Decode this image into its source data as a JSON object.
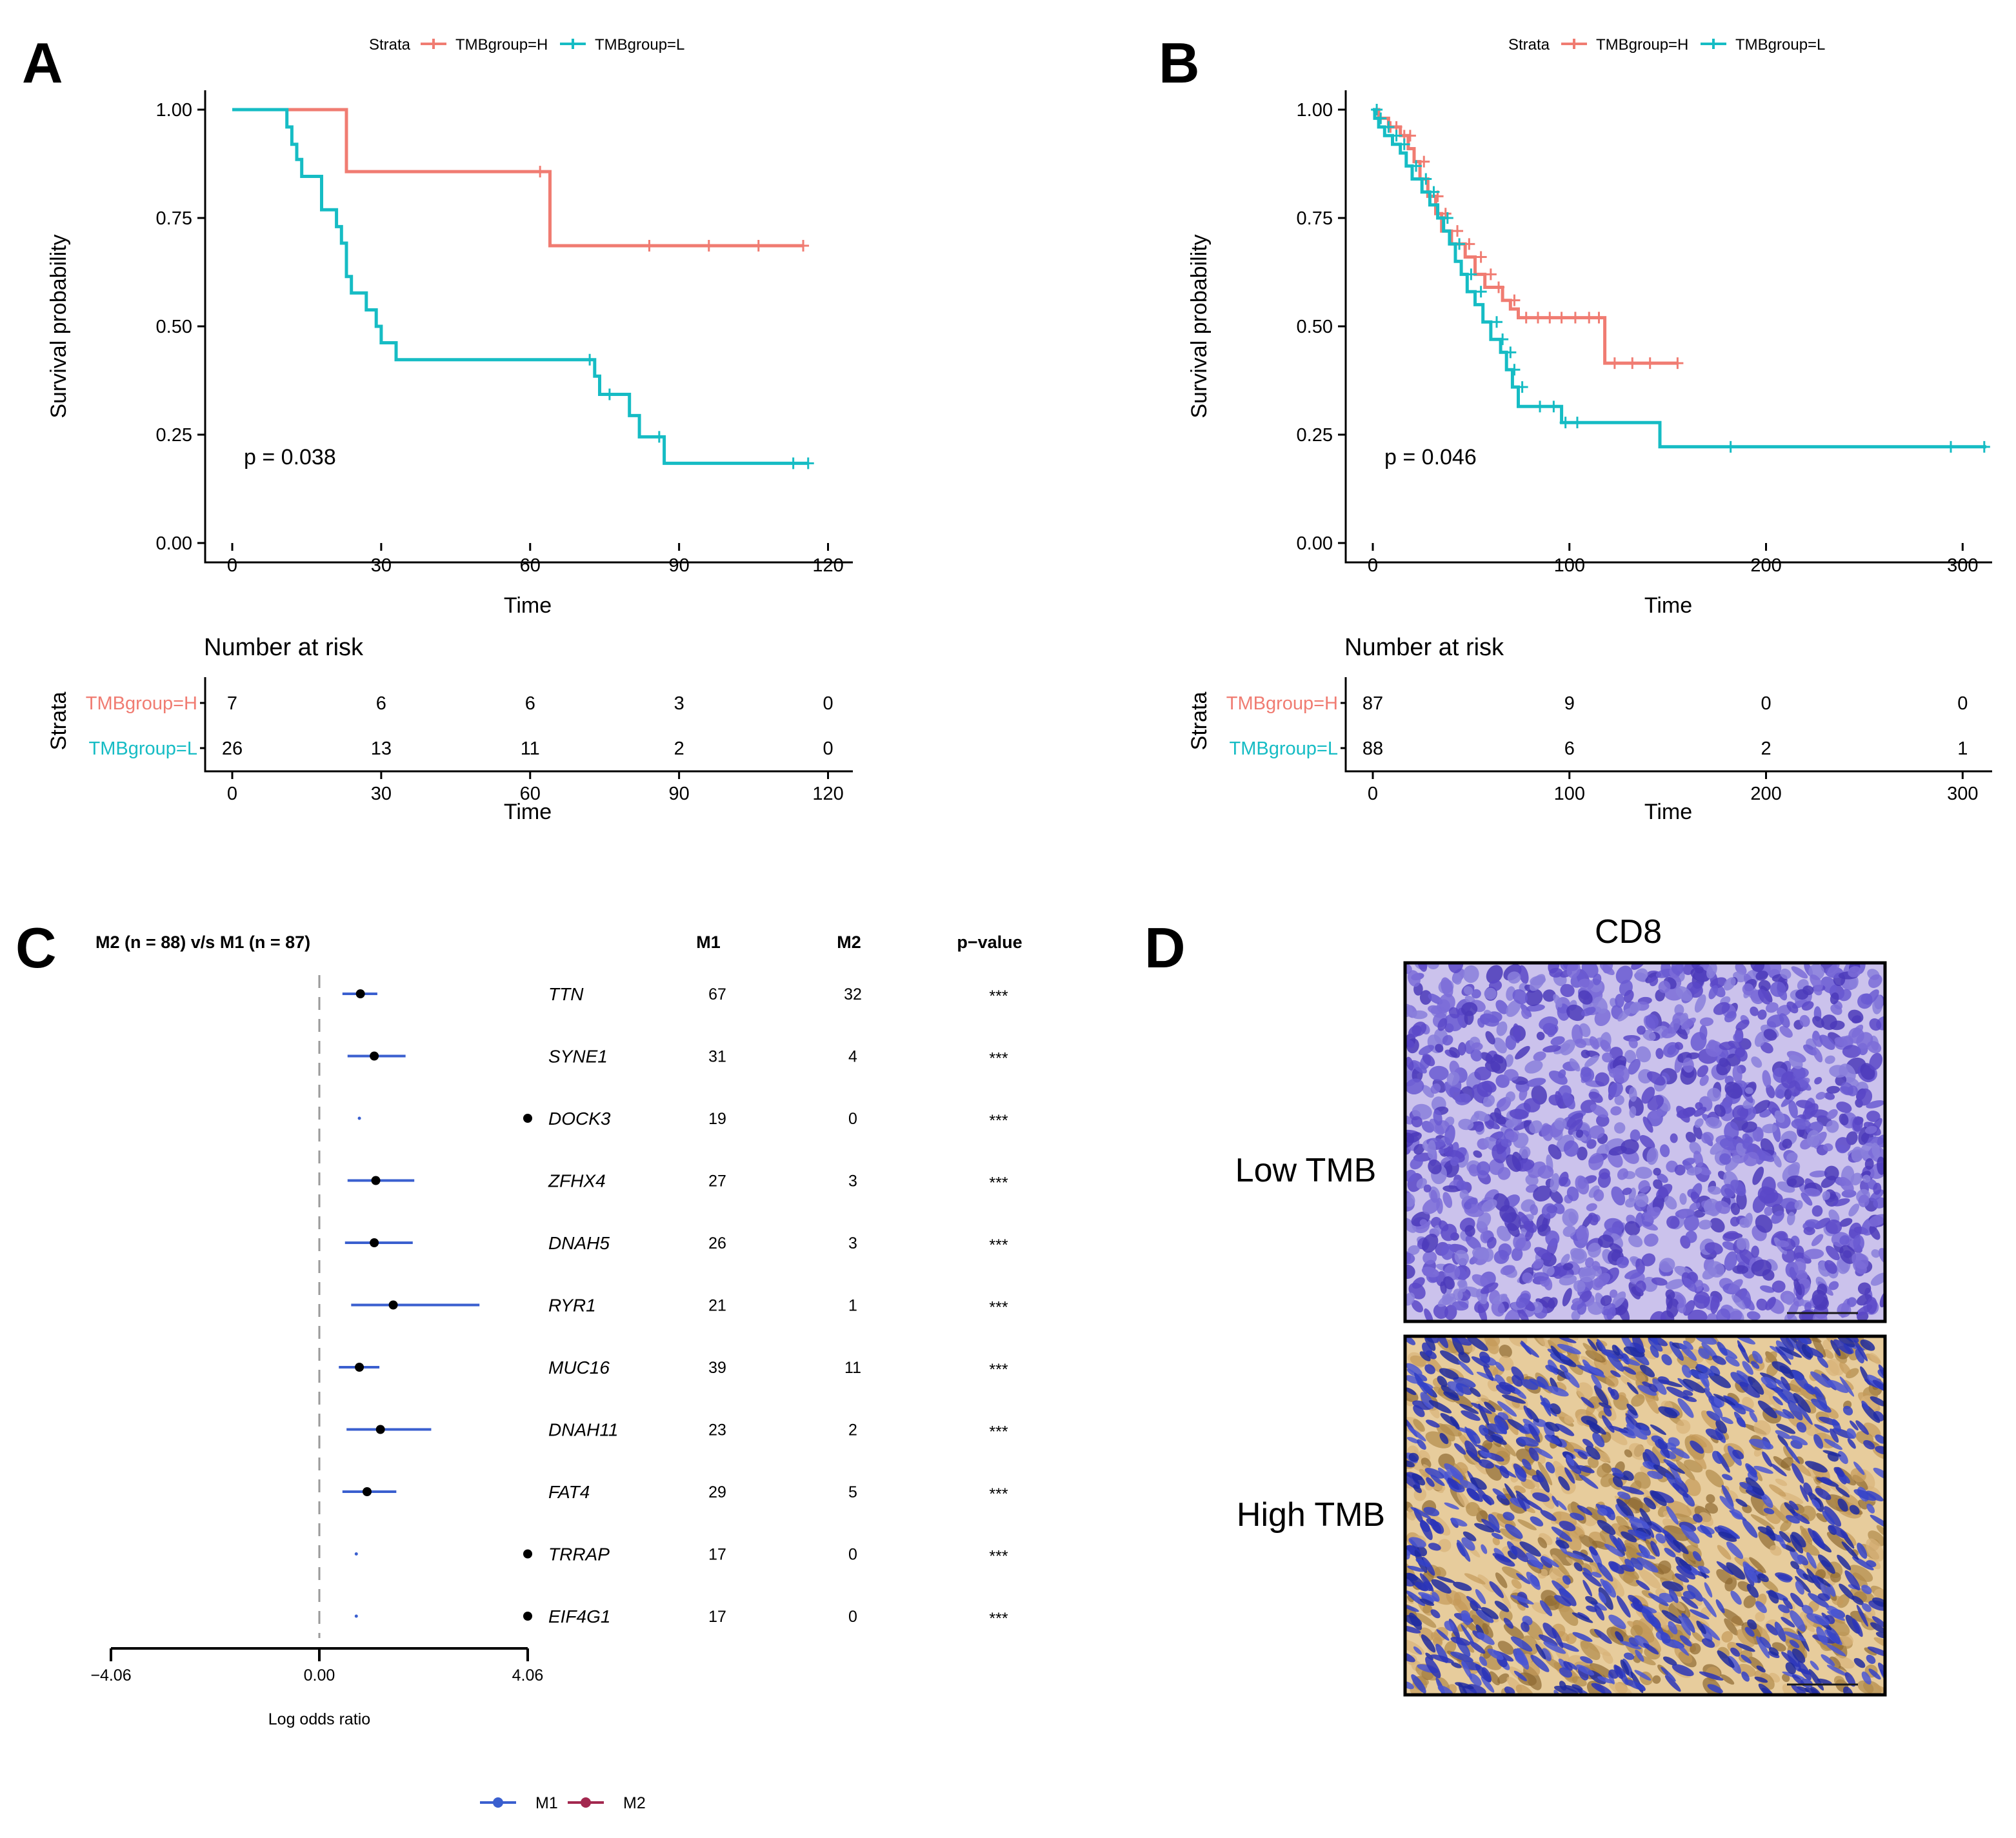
{
  "colors": {
    "H": "#f07c72",
    "L": "#16bcc4",
    "M1": "#3a5fcf",
    "M2": "#a3284f",
    "dash": "#9a9a9a"
  },
  "chart_data": [
    {
      "panel": "A",
      "type": "line",
      "subtype": "kaplan-meier",
      "legend_title": "Strata",
      "xlabel": "Time",
      "ylabel": "Survival probability",
      "xlim": [
        0,
        125
      ],
      "ylim": [
        0,
        1
      ],
      "xticks": [
        0,
        30,
        60,
        90,
        120
      ],
      "yticks": [
        "0.00",
        "0.25",
        "0.50",
        "0.75",
        "1.00"
      ],
      "pvalue": "p = 0.038",
      "series": [
        {
          "name": "TMBgroup=H",
          "color_key": "H",
          "steps": [
            [
              0,
              1.0
            ],
            [
              23,
              1.0
            ],
            [
              23,
              0.857
            ],
            [
              64,
              0.857
            ],
            [
              64,
              0.686
            ],
            [
              115,
              0.686
            ]
          ],
          "censor": [
            [
              62,
              0.857
            ],
            [
              84,
              0.686
            ],
            [
              96,
              0.686
            ],
            [
              106,
              0.686
            ],
            [
              115,
              0.686
            ]
          ]
        },
        {
          "name": "TMBgroup=L",
          "color_key": "L",
          "steps": [
            [
              0,
              1.0
            ],
            [
              11,
              1.0
            ],
            [
              11,
              0.96
            ],
            [
              12,
              0.96
            ],
            [
              12,
              0.92
            ],
            [
              13,
              0.92
            ],
            [
              13,
              0.885
            ],
            [
              14,
              0.885
            ],
            [
              14,
              0.846
            ],
            [
              18,
              0.846
            ],
            [
              18,
              0.769
            ],
            [
              21,
              0.769
            ],
            [
              21,
              0.73
            ],
            [
              22,
              0.73
            ],
            [
              22,
              0.692
            ],
            [
              23,
              0.692
            ],
            [
              23,
              0.615
            ],
            [
              24,
              0.615
            ],
            [
              24,
              0.577
            ],
            [
              27,
              0.577
            ],
            [
              27,
              0.538
            ],
            [
              29,
              0.538
            ],
            [
              29,
              0.5
            ],
            [
              30,
              0.5
            ],
            [
              30,
              0.462
            ],
            [
              33,
              0.462
            ],
            [
              33,
              0.423
            ],
            [
              73,
              0.423
            ],
            [
              73,
              0.385
            ],
            [
              74,
              0.385
            ],
            [
              74,
              0.343
            ],
            [
              80,
              0.343
            ],
            [
              80,
              0.294
            ],
            [
              82,
              0.294
            ],
            [
              82,
              0.245
            ],
            [
              87,
              0.245
            ],
            [
              87,
              0.184
            ],
            [
              116,
              0.184
            ]
          ],
          "censor": [
            [
              72,
              0.423
            ],
            [
              76,
              0.343
            ],
            [
              86,
              0.245
            ],
            [
              113,
              0.184
            ],
            [
              116,
              0.184
            ]
          ]
        }
      ],
      "risk_table": {
        "title": "Number at risk",
        "ylabel": "Strata",
        "xlabel": "Time",
        "rows": [
          {
            "label": "TMBgroup=H",
            "color_key": "H",
            "values": [
              "7",
              "6",
              "6",
              "3",
              "0"
            ]
          },
          {
            "label": "TMBgroup=L",
            "color_key": "L",
            "values": [
              "26",
              "13",
              "11",
              "2",
              "0"
            ]
          }
        ]
      }
    },
    {
      "panel": "B",
      "type": "line",
      "subtype": "kaplan-meier",
      "legend_title": "Strata",
      "xlabel": "Time",
      "ylabel": "Survival probability",
      "xlim": [
        0,
        315
      ],
      "ylim": [
        0,
        1
      ],
      "xticks": [
        0,
        100,
        200,
        300
      ],
      "yticks": [
        "0.00",
        "0.25",
        "0.50",
        "0.75",
        "1.00"
      ],
      "pvalue": "p = 0.046",
      "series": [
        {
          "name": "TMBgroup=H",
          "color_key": "H",
          "steps": [
            [
              0,
              1.0
            ],
            [
              3,
              1.0
            ],
            [
              3,
              0.98
            ],
            [
              8,
              0.98
            ],
            [
              8,
              0.96
            ],
            [
              14,
              0.96
            ],
            [
              14,
              0.94
            ],
            [
              18,
              0.94
            ],
            [
              18,
              0.91
            ],
            [
              21,
              0.91
            ],
            [
              21,
              0.88
            ],
            [
              24,
              0.88
            ],
            [
              24,
              0.84
            ],
            [
              28,
              0.84
            ],
            [
              28,
              0.8
            ],
            [
              32,
              0.8
            ],
            [
              32,
              0.76
            ],
            [
              35,
              0.76
            ],
            [
              35,
              0.72
            ],
            [
              40,
              0.72
            ],
            [
              40,
              0.69
            ],
            [
              47,
              0.69
            ],
            [
              47,
              0.66
            ],
            [
              52,
              0.66
            ],
            [
              52,
              0.62
            ],
            [
              57,
              0.62
            ],
            [
              57,
              0.59
            ],
            [
              66,
              0.59
            ],
            [
              66,
              0.56
            ],
            [
              70,
              0.56
            ],
            [
              70,
              0.54
            ],
            [
              74,
              0.54
            ],
            [
              74,
              0.52
            ],
            [
              118,
              0.52
            ],
            [
              118,
              0.415
            ],
            [
              155,
              0.415
            ]
          ],
          "censor": [
            [
              4,
              0.98
            ],
            [
              9,
              0.96
            ],
            [
              12,
              0.96
            ],
            [
              16,
              0.94
            ],
            [
              19,
              0.94
            ],
            [
              26,
              0.88
            ],
            [
              33,
              0.8
            ],
            [
              37,
              0.76
            ],
            [
              43,
              0.72
            ],
            [
              49,
              0.69
            ],
            [
              55,
              0.66
            ],
            [
              60,
              0.62
            ],
            [
              64,
              0.59
            ],
            [
              72,
              0.56
            ],
            [
              78,
              0.52
            ],
            [
              84,
              0.52
            ],
            [
              90,
              0.52
            ],
            [
              96,
              0.52
            ],
            [
              103,
              0.52
            ],
            [
              110,
              0.52
            ],
            [
              115,
              0.52
            ],
            [
              123,
              0.415
            ],
            [
              132,
              0.415
            ],
            [
              141,
              0.415
            ],
            [
              155,
              0.415
            ]
          ]
        },
        {
          "name": "TMBgroup=L",
          "color_key": "L",
          "steps": [
            [
              0,
              1.0
            ],
            [
              1,
              1.0
            ],
            [
              1,
              0.98
            ],
            [
              3,
              0.98
            ],
            [
              3,
              0.96
            ],
            [
              6,
              0.96
            ],
            [
              6,
              0.94
            ],
            [
              10,
              0.94
            ],
            [
              10,
              0.92
            ],
            [
              14,
              0.92
            ],
            [
              14,
              0.9
            ],
            [
              17,
              0.9
            ],
            [
              17,
              0.87
            ],
            [
              20,
              0.87
            ],
            [
              20,
              0.84
            ],
            [
              25,
              0.84
            ],
            [
              25,
              0.81
            ],
            [
              29,
              0.81
            ],
            [
              29,
              0.78
            ],
            [
              33,
              0.78
            ],
            [
              33,
              0.75
            ],
            [
              36,
              0.75
            ],
            [
              36,
              0.72
            ],
            [
              39,
              0.72
            ],
            [
              39,
              0.69
            ],
            [
              42,
              0.69
            ],
            [
              42,
              0.65
            ],
            [
              45,
              0.65
            ],
            [
              45,
              0.62
            ],
            [
              48,
              0.62
            ],
            [
              48,
              0.58
            ],
            [
              52,
              0.58
            ],
            [
              52,
              0.55
            ],
            [
              56,
              0.55
            ],
            [
              56,
              0.51
            ],
            [
              60,
              0.51
            ],
            [
              60,
              0.47
            ],
            [
              65,
              0.47
            ],
            [
              65,
              0.44
            ],
            [
              68,
              0.44
            ],
            [
              68,
              0.4
            ],
            [
              71,
              0.4
            ],
            [
              71,
              0.36
            ],
            [
              74,
              0.36
            ],
            [
              74,
              0.315
            ],
            [
              96,
              0.315
            ],
            [
              96,
              0.278
            ],
            [
              146,
              0.278
            ],
            [
              146,
              0.222
            ],
            [
              312,
              0.222
            ]
          ],
          "censor": [
            [
              2,
              1.0
            ],
            [
              4,
              0.98
            ],
            [
              8,
              0.96
            ],
            [
              12,
              0.94
            ],
            [
              16,
              0.92
            ],
            [
              22,
              0.87
            ],
            [
              27,
              0.84
            ],
            [
              31,
              0.81
            ],
            [
              38,
              0.75
            ],
            [
              44,
              0.69
            ],
            [
              50,
              0.62
            ],
            [
              55,
              0.58
            ],
            [
              63,
              0.51
            ],
            [
              66,
              0.47
            ],
            [
              70,
              0.44
            ],
            [
              72,
              0.4
            ],
            [
              76,
              0.36
            ],
            [
              85,
              0.315
            ],
            [
              92,
              0.315
            ],
            [
              98,
              0.278
            ],
            [
              104,
              0.278
            ],
            [
              182,
              0.222
            ],
            [
              294,
              0.222
            ],
            [
              311,
              0.222
            ]
          ]
        }
      ],
      "risk_table": {
        "title": "Number at risk",
        "ylabel": "Strata",
        "xlabel": "Time",
        "rows": [
          {
            "label": "TMBgroup=H",
            "color_key": "H",
            "values": [
              "87",
              "9",
              "0",
              "0"
            ]
          },
          {
            "label": "TMBgroup=L",
            "color_key": "L",
            "values": [
              "88",
              "6",
              "2",
              "1"
            ]
          }
        ]
      }
    },
    {
      "panel": "C",
      "type": "scatter",
      "subtype": "forest",
      "title": "M2 (n = 88) v/s M1 (n = 87)",
      "xlabel": "Log odds ratio",
      "xlim": [
        -4.06,
        4.06
      ],
      "xticks": [
        "−4.06",
        "0.00",
        "4.06"
      ],
      "col_headers": [
        "M1",
        "M2",
        "p−value"
      ],
      "legend": [
        {
          "name": "M1",
          "color_key": "M1"
        },
        {
          "name": "M2",
          "color_key": "M2"
        }
      ],
      "rows": [
        {
          "gene": "TTN",
          "or": 0.8,
          "lo": 0.45,
          "hi": 1.13,
          "m1": "67",
          "m2": "32",
          "p": "***",
          "edge": false
        },
        {
          "gene": "SYNE1",
          "or": 1.07,
          "lo": 0.55,
          "hi": 1.68,
          "m1": "31",
          "m2": "4",
          "p": "***",
          "edge": false
        },
        {
          "gene": "DOCK3",
          "or": 0.78,
          "lo": 0.76,
          "hi": 0.8,
          "m1": "19",
          "m2": "0",
          "p": "***",
          "edge": true
        },
        {
          "gene": "ZFHX4",
          "or": 1.1,
          "lo": 0.55,
          "hi": 1.85,
          "m1": "27",
          "m2": "3",
          "p": "***",
          "edge": false
        },
        {
          "gene": "DNAH5",
          "or": 1.07,
          "lo": 0.5,
          "hi": 1.82,
          "m1": "26",
          "m2": "3",
          "p": "***",
          "edge": false
        },
        {
          "gene": "RYR1",
          "or": 1.44,
          "lo": 0.62,
          "hi": 3.12,
          "m1": "21",
          "m2": "1",
          "p": "***",
          "edge": false
        },
        {
          "gene": "MUC16",
          "or": 0.78,
          "lo": 0.38,
          "hi": 1.17,
          "m1": "39",
          "m2": "11",
          "p": "***",
          "edge": false
        },
        {
          "gene": "DNAH11",
          "or": 1.19,
          "lo": 0.53,
          "hi": 2.18,
          "m1": "23",
          "m2": "2",
          "p": "***",
          "edge": false
        },
        {
          "gene": "FAT4",
          "or": 0.93,
          "lo": 0.45,
          "hi": 1.5,
          "m1": "29",
          "m2": "5",
          "p": "***",
          "edge": false
        },
        {
          "gene": "TRRAP",
          "or": 0.72,
          "lo": 0.7,
          "hi": 0.74,
          "m1": "17",
          "m2": "0",
          "p": "***",
          "edge": true
        },
        {
          "gene": "EIF4G1",
          "or": 0.72,
          "lo": 0.7,
          "hi": 0.74,
          "m1": "17",
          "m2": "0",
          "p": "***",
          "edge": true
        }
      ]
    }
  ],
  "panel_d": {
    "letter": "D",
    "title": "CD8",
    "rows": [
      {
        "label": "Low TMB",
        "stain": "low"
      },
      {
        "label": "High TMB",
        "stain": "high"
      }
    ]
  }
}
